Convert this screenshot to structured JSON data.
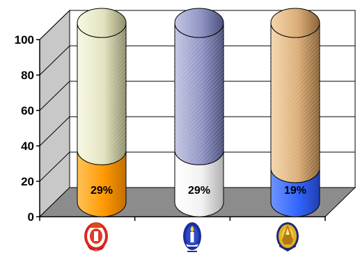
{
  "chart_data": {
    "type": "bar",
    "style": "3d-cylinder-stacked-percent",
    "categories": [
      "red-white-emblem",
      "blue-candle-emblem",
      "gold-pagoda-emblem"
    ],
    "category_icons": [
      "red-white-emblem-icon",
      "blue-candle-emblem-icon",
      "gold-pagoda-emblem-icon"
    ],
    "series": [
      {
        "values": [
          29,
          29,
          19
        ],
        "colors": [
          "#ff9900",
          "#ffffff",
          "#3366ff"
        ]
      },
      {
        "values": [
          71,
          71,
          81
        ],
        "colors": [
          "#e8e8c4",
          "#8f94c4",
          "#dcae78"
        ]
      }
    ],
    "data_labels": [
      "29%",
      "29%",
      "19%"
    ],
    "ylim": [
      0,
      100
    ],
    "yticks": [
      0,
      20,
      40,
      60,
      80,
      100
    ],
    "ytick_labels": [
      "0",
      "20",
      "40",
      "60",
      "80",
      "100"
    ],
    "grid": true,
    "legend": "none",
    "title": "",
    "xlabel": "",
    "ylabel": ""
  }
}
